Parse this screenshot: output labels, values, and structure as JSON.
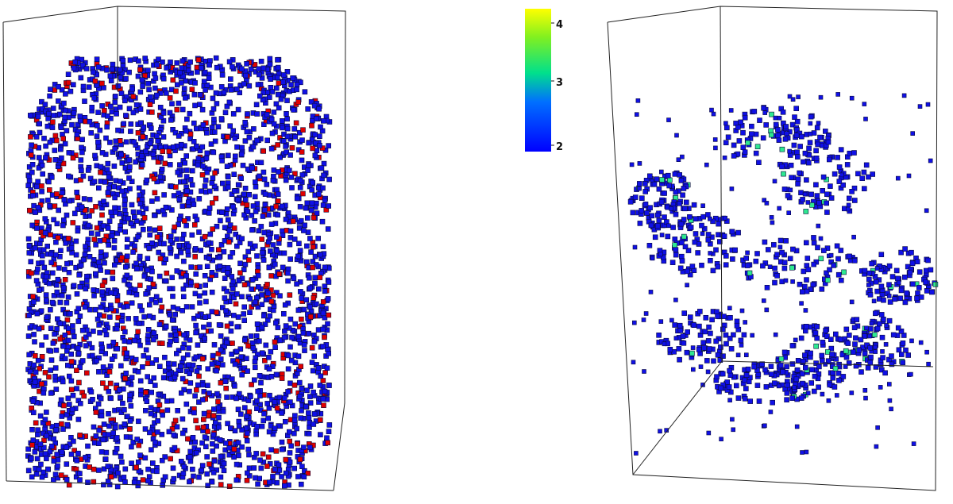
{
  "colors": {
    "left_secondary": "#e00000",
    "primary": "#1010e6",
    "highlight": "#2ee890",
    "box_line": "#222222",
    "colorbar_top": "#ffff00",
    "colorbar_mid": "#00e08c",
    "colorbar_bottom": "#0000ff"
  },
  "colorbar": {
    "ticks": [
      "4",
      "3",
      "2"
    ],
    "range": [
      1.9,
      4.2
    ]
  }
}
